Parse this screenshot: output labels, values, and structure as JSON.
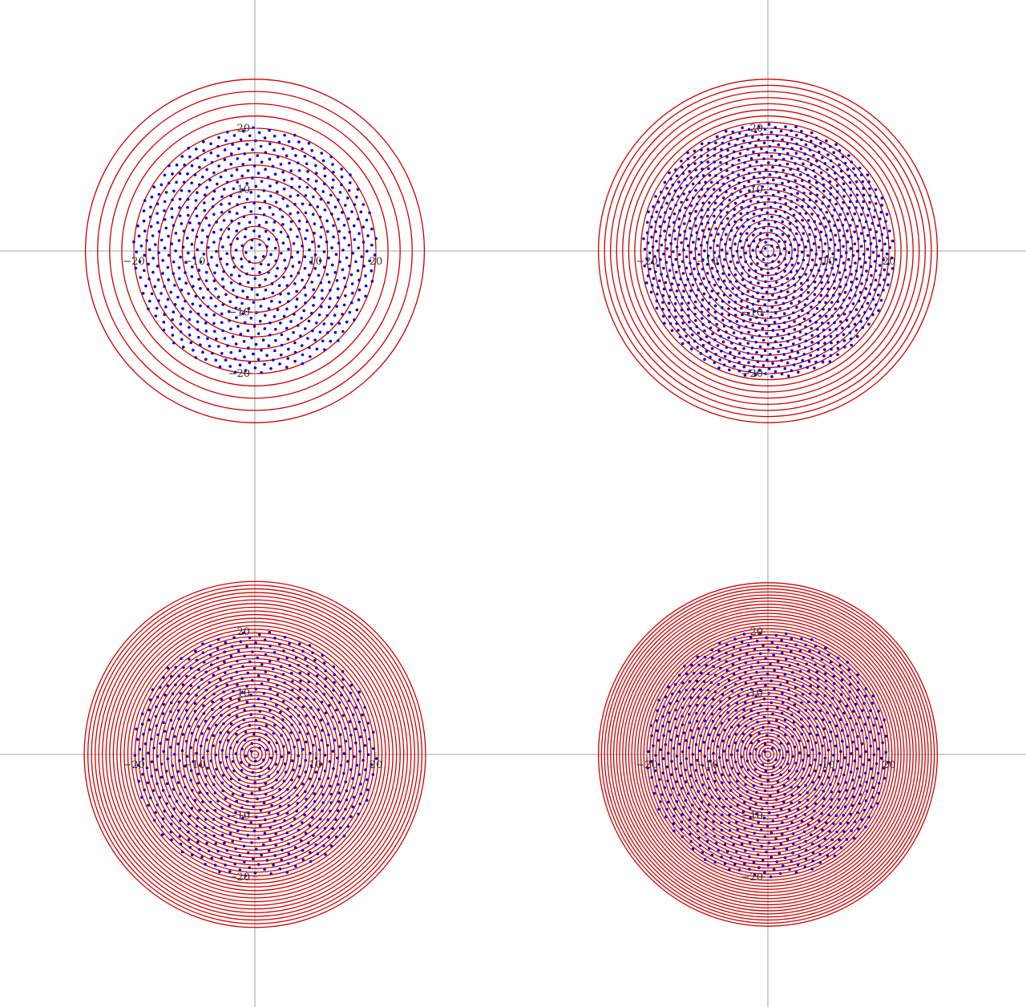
{
  "chart_data": [
    {
      "type": "scatter",
      "panel": "top-left",
      "xlim": [
        -20,
        20
      ],
      "ylim": [
        -20,
        20
      ],
      "xticks": [
        -20,
        -10,
        10,
        20
      ],
      "yticks": [
        20,
        10,
        -10,
        -20
      ],
      "tick_labels": {
        "x": [
          "−20",
          "−10",
          "10",
          "20"
        ],
        "y": [
          "20",
          "10",
          "−10",
          "−20"
        ]
      },
      "ring_radii": [
        2,
        4,
        6,
        8,
        10,
        12,
        14,
        16,
        18,
        20,
        22,
        24,
        26,
        28
      ],
      "spiral_points": {
        "count": 720,
        "alpha_degrees": 137.508,
        "radius_scale": 0.75
      },
      "grid": false
    },
    {
      "type": "scatter",
      "panel": "top-right",
      "xlim": [
        -20,
        20
      ],
      "ylim": [
        -20,
        20
      ],
      "xticks": [
        -20,
        -10,
        10,
        20
      ],
      "yticks": [
        20,
        10,
        -10,
        -20
      ],
      "tick_labels": {
        "x": [
          "−20",
          "−10",
          "10",
          "20"
        ],
        "y": [
          "20",
          "10",
          "−10",
          "−20"
        ]
      },
      "ring_radii": [
        1,
        2,
        3,
        4,
        5,
        6,
        7,
        8,
        9,
        10,
        11,
        12,
        13,
        14,
        15,
        16,
        17,
        18,
        19,
        20,
        21,
        22,
        23,
        24,
        25,
        26,
        27,
        28
      ],
      "spiral_points": {
        "count": 1200,
        "alpha_degrees": 137.508,
        "radius_scale": 0.6
      },
      "grid": false
    },
    {
      "type": "scatter",
      "panel": "bottom-left",
      "xlim": [
        -20,
        20
      ],
      "ylim": [
        -20,
        20
      ],
      "xticks": [
        -20,
        -10,
        10,
        20
      ],
      "yticks": [
        20,
        10,
        -10,
        -20
      ],
      "tick_labels": {
        "x": [
          "−20",
          "−10",
          "10",
          "20"
        ],
        "y": [
          "20",
          "10",
          "−10",
          "−20"
        ]
      },
      "ring_radii": [
        0.6,
        1.2,
        1.8,
        2.4,
        3.0,
        3.6,
        4.2,
        4.8,
        5.4,
        6.0,
        6.6,
        7.2,
        7.8,
        8.4,
        9.0,
        9.6,
        10.2,
        10.8,
        11.4,
        12.0,
        12.6,
        13.2,
        13.8,
        14.4,
        15.0,
        15.6,
        16.2,
        16.8,
        17.4,
        18.0,
        18.6,
        19.2,
        19.8,
        20.4,
        21.0,
        21.6,
        22.2,
        22.8,
        23.4,
        24.0,
        24.6,
        25.2,
        25.8,
        26.4,
        27.0,
        27.6,
        28.2
      ],
      "spiral_points": {
        "count": 700,
        "alpha_degrees": 137.508,
        "radius_scale": 0.76
      },
      "grid": false
    },
    {
      "type": "scatter",
      "panel": "bottom-right",
      "xlim": [
        -20,
        20
      ],
      "ylim": [
        -20,
        20
      ],
      "xticks": [
        -20,
        -10,
        10,
        20
      ],
      "yticks": [
        20,
        10,
        -10,
        -20
      ],
      "tick_labels": {
        "x": [
          "−20",
          "−10",
          "10",
          "20"
        ],
        "y": [
          "20",
          "10",
          "−10",
          "−20"
        ]
      },
      "ring_radii": [
        0.5,
        1.0,
        1.5,
        2.0,
        2.5,
        3.0,
        3.5,
        4.0,
        4.5,
        5.0,
        5.5,
        6.0,
        6.5,
        7.0,
        7.5,
        8.0,
        8.5,
        9.0,
        9.5,
        10.0,
        10.5,
        11.0,
        11.5,
        12.0,
        12.5,
        13.0,
        13.5,
        14.0,
        14.5,
        15.0,
        15.5,
        16.0,
        16.5,
        17.0,
        17.5,
        18.0,
        18.5,
        19.0,
        19.5,
        20.0,
        20.5,
        21.0,
        21.5,
        22.0,
        22.5,
        23.0,
        23.5,
        24.0,
        24.5,
        25.0,
        25.5,
        26.0,
        26.5,
        27.0,
        27.5,
        28.0
      ],
      "spiral_points": {
        "count": 800,
        "alpha_degrees": 137.508,
        "radius_scale": 0.71
      },
      "grid": false
    }
  ],
  "colors": {
    "ring": "#cc0000",
    "point": "#0000dd",
    "axis": "#888888",
    "background": "#ffffff"
  }
}
